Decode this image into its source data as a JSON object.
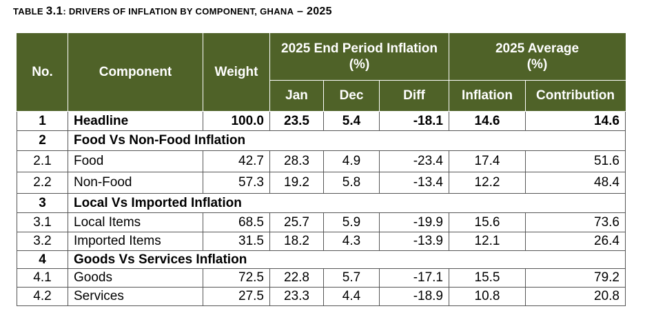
{
  "title": {
    "prefix": "TABLE ",
    "number": "3.1",
    "rest": ": DRIVERS OF INFLATION BY COMPONENT, G",
    "big_letter_word": "HANA",
    "dash": " – ",
    "year": "2025"
  },
  "header": {
    "no": "No.",
    "component": "Component",
    "weight": "Weight",
    "group_end_period": "2025 End Period Inflation (%)",
    "group_average": "2025 Average (%)",
    "jan": "Jan",
    "dec": "Dec",
    "diff": "Diff",
    "inflation": "Inflation",
    "contribution": "Contribution"
  },
  "rows": {
    "headline": {
      "no": "1",
      "component": "Headline",
      "weight": "100.0",
      "jan": "23.5",
      "dec": "5.4",
      "diff": "-18.1",
      "inflation": "14.6",
      "contribution": "14.6"
    },
    "sec2": {
      "no": "2",
      "label": "Food Vs Non-Food Inflation"
    },
    "r2_1": {
      "no": "2.1",
      "component": "Food",
      "weight": "42.7",
      "jan": "28.3",
      "dec": "4.9",
      "diff": "-23.4",
      "inflation": "17.4",
      "contribution": "51.6"
    },
    "r2_2": {
      "no": "2.2",
      "component": "Non-Food",
      "weight": "57.3",
      "jan": "19.2",
      "dec": "5.8",
      "diff": "-13.4",
      "inflation": "12.2",
      "contribution": "48.4"
    },
    "sec3": {
      "no": "3",
      "label": "Local Vs Imported Inflation"
    },
    "r3_1": {
      "no": "3.1",
      "component": "Local Items",
      "weight": "68.5",
      "jan": "25.7",
      "dec": "5.9",
      "diff": "-19.9",
      "inflation": "15.6",
      "contribution": "73.6"
    },
    "r3_2": {
      "no": "3.2",
      "component": "Imported Items",
      "weight": "31.5",
      "jan": "18.2",
      "dec": "4.3",
      "diff": "-13.9",
      "inflation": "12.1",
      "contribution": "26.4"
    },
    "sec4": {
      "no": "4",
      "label": "Goods Vs Services Inflation"
    },
    "r4_1": {
      "no": "4.1",
      "component": "Goods",
      "weight": "72.5",
      "jan": "22.8",
      "dec": "5.7",
      "diff": "-17.1",
      "inflation": "15.5",
      "contribution": "79.2"
    },
    "r4_2": {
      "no": "4.2",
      "component": "Services",
      "weight": "27.5",
      "jan": "23.3",
      "dec": "4.4",
      "diff": "-18.9",
      "inflation": "10.8",
      "contribution": "20.8"
    }
  },
  "colors": {
    "header_background": "#4f6228",
    "header_text": "#ffffff"
  }
}
